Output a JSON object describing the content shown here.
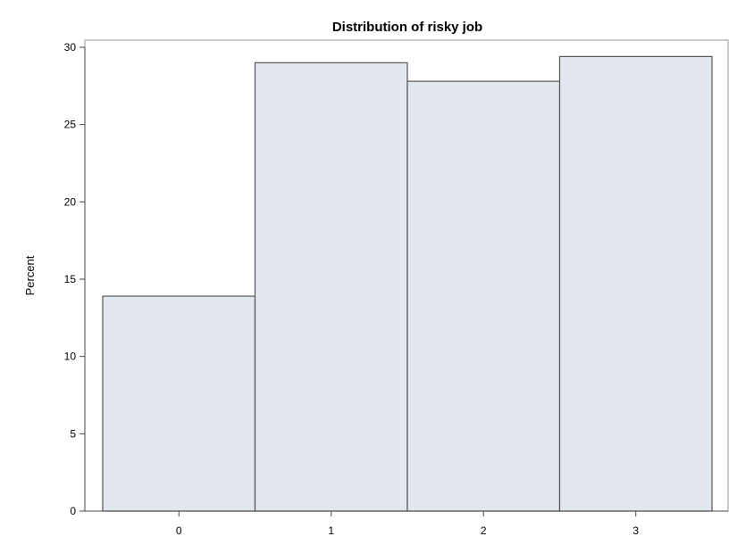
{
  "colors": {
    "bar_fill": "#e3e7f0",
    "bar_stroke": "#555555",
    "frame": "#9a9a9a",
    "axis": "#444444",
    "text": "#000000"
  },
  "chart_data": {
    "type": "bar",
    "title": "Distribution of risky job",
    "xlabel": "",
    "ylabel": "Percent",
    "categories": [
      "0",
      "1",
      "2",
      "3"
    ],
    "values": [
      13.9,
      29.0,
      27.8,
      29.4
    ],
    "ylim": [
      0,
      30
    ],
    "yticks": [
      0,
      5,
      10,
      15,
      20,
      25,
      30
    ],
    "grid": false,
    "legend": "none"
  }
}
